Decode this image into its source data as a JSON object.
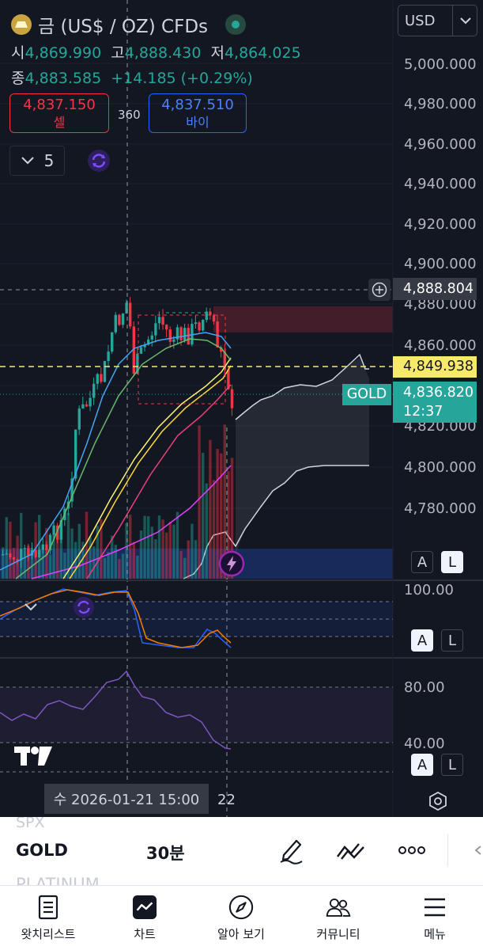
{
  "header": {
    "symbol_title": "금 (US$ / OZ) CFDs",
    "currency": "USD",
    "ohlc_row1": [
      {
        "key": "시",
        "value": "4,869.990"
      },
      {
        "key": "고",
        "value": "4,888.430"
      },
      {
        "key": "저",
        "value": "4,864.025"
      }
    ],
    "close_key": "종",
    "close_value": "4,883.585",
    "change": "+14.185 (+0.29%)",
    "sell_price": "4,837.150",
    "sell_label": "셀",
    "spread": "360",
    "buy_price": "4,837.510",
    "buy_label": "바이",
    "indicator_count": "5"
  },
  "price_axis": {
    "labels": [
      "5,000.000",
      "4,980.000",
      "4,960.000",
      "4,940.000",
      "4,920.000",
      "4,900.000",
      "4,880.000",
      "4,860.000",
      "4,840.000",
      "4,820.000",
      "4,800.000",
      "4,780.000"
    ],
    "crosshair_price": "4,888.804",
    "level_price": "4,849.938",
    "symbol_tag": "GOLD",
    "last_price": "4,836.820",
    "countdown": "12:37"
  },
  "osc1_axis": {
    "label": "100.00"
  },
  "osc2_axis": {
    "labels": [
      "80.00",
      "40.00"
    ]
  },
  "scale_buttons": {
    "a": "A",
    "l": "L"
  },
  "time_axis": {
    "crosshair_time": "수 2026-01-21   15:00",
    "next_label": "22"
  },
  "toolbar": {
    "symbol_prev": "SPX",
    "symbol": "GOLD",
    "symbol_next": "PLATINUM",
    "interval": "30분"
  },
  "tabs": [
    {
      "label": "왓치리스트",
      "icon": "watchlist-icon"
    },
    {
      "label": "차트",
      "icon": "chart-icon"
    },
    {
      "label": "알아 보기",
      "icon": "compass-icon"
    },
    {
      "label": "커뮤니티",
      "icon": "community-icon"
    },
    {
      "label": "메뉴",
      "icon": "menu-icon"
    }
  ],
  "colors": {
    "background": "#131722",
    "up": "#26a69a",
    "down": "#f23645",
    "level_line": "#f7e96b",
    "buy": "#2962ff",
    "oscillator": "#7e57c2"
  }
}
